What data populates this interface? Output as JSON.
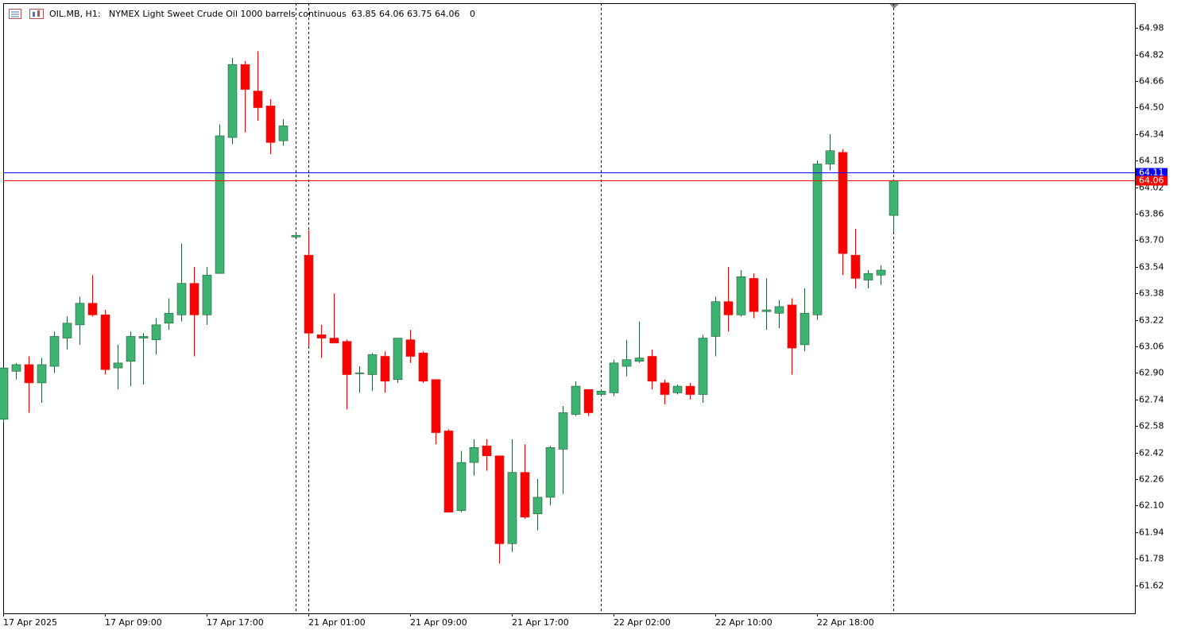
{
  "chart_data": {
    "type": "candlestick",
    "header": {
      "symbol": "OIL.MB, H1:",
      "description": "NYMEX Light Sweet Crude Oil 1000 barrels continuous",
      "ohlc": "63.85 64.06 63.75 64.06",
      "volume": "0"
    },
    "categories": [
      "17 Apr 2025",
      null,
      null,
      null,
      null,
      null,
      null,
      null,
      "17 Apr 09:00",
      null,
      null,
      null,
      null,
      null,
      null,
      null,
      "17 Apr 17:00",
      null,
      null,
      null,
      null,
      null,
      null,
      null,
      "21 Apr 01:00",
      null,
      null,
      null,
      null,
      null,
      null,
      null,
      "21 Apr 09:00",
      null,
      null,
      null,
      null,
      null,
      null,
      null,
      "21 Apr 17:00",
      null,
      null,
      null,
      null,
      null,
      null,
      null,
      "22 Apr 02:00",
      null,
      null,
      null,
      null,
      null,
      null,
      null,
      "22 Apr 10:00",
      null,
      null,
      null,
      null,
      null,
      null,
      null,
      "22 Apr 18:00",
      null,
      null,
      null,
      null,
      null,
      null
    ],
    "open": [
      62.62,
      62.91,
      62.95,
      62.84,
      62.94,
      63.11,
      63.19,
      63.32,
      63.25,
      62.93,
      62.97,
      63.11,
      63.1,
      63.2,
      63.25,
      63.44,
      63.25,
      63.5,
      64.32,
      64.76,
      64.6,
      64.51,
      64.3,
      63.72,
      63.61,
      63.13,
      63.11,
      63.09,
      62.9,
      62.89,
      63.0,
      62.86,
      63.1,
      63.02,
      62.86,
      62.55,
      62.07,
      62.36,
      62.46,
      62.4,
      61.87,
      62.3,
      62.05,
      62.15,
      62.44,
      62.65,
      62.8,
      62.77,
      62.78,
      62.94,
      62.97,
      63.0,
      62.84,
      62.78,
      62.82,
      62.77,
      63.12,
      63.33,
      63.25,
      63.47,
      63.27,
      63.26,
      63.31,
      63.07,
      63.25,
      64.16,
      64.23,
      63.61,
      63.46,
      63.49,
      63.85
    ],
    "high": [
      62.93,
      62.96,
      63.0,
      62.99,
      63.15,
      63.24,
      63.36,
      63.49,
      63.28,
      63.07,
      63.15,
      63.14,
      63.23,
      63.35,
      63.68,
      63.54,
      63.54,
      64.4,
      64.8,
      64.78,
      64.84,
      64.55,
      64.43,
      63.74,
      63.76,
      63.19,
      63.38,
      63.1,
      62.94,
      63.02,
      63.03,
      63.11,
      63.16,
      63.03,
      62.86,
      62.56,
      62.43,
      62.5,
      62.5,
      62.4,
      62.5,
      62.47,
      62.26,
      62.46,
      62.7,
      62.85,
      62.8,
      62.8,
      62.98,
      63.1,
      63.21,
      63.04,
      62.86,
      62.83,
      62.84,
      63.13,
      63.36,
      63.54,
      63.52,
      63.5,
      63.47,
      63.34,
      63.35,
      63.41,
      64.18,
      64.34,
      64.25,
      63.77,
      63.52,
      63.55,
      64.06
    ],
    "low": [
      62.6,
      62.86,
      62.66,
      62.72,
      62.9,
      63.04,
      63.07,
      63.24,
      62.89,
      62.8,
      62.82,
      62.83,
      63.01,
      63.16,
      63.21,
      63.0,
      63.19,
      63.5,
      64.28,
      64.35,
      64.42,
      64.22,
      64.27,
      63.72,
      63.06,
      62.99,
      63.08,
      62.68,
      62.78,
      62.79,
      62.78,
      62.84,
      62.96,
      62.84,
      62.47,
      62.06,
      62.06,
      62.28,
      62.31,
      61.75,
      61.82,
      62.02,
      61.95,
      62.1,
      62.17,
      62.64,
      62.64,
      62.76,
      62.76,
      62.88,
      62.96,
      62.8,
      62.71,
      62.77,
      62.74,
      62.72,
      63.0,
      63.15,
      63.24,
      63.23,
      63.16,
      63.17,
      62.89,
      63.03,
      63.22,
      64.12,
      63.49,
      63.41,
      63.41,
      63.43,
      63.75
    ],
    "close": [
      62.93,
      62.95,
      62.84,
      62.95,
      63.12,
      63.2,
      63.32,
      63.25,
      62.92,
      62.96,
      63.12,
      63.12,
      63.19,
      63.26,
      63.44,
      63.25,
      63.49,
      64.33,
      64.76,
      64.61,
      64.5,
      64.29,
      64.39,
      63.73,
      63.14,
      63.11,
      63.08,
      62.89,
      62.9,
      63.01,
      62.85,
      63.11,
      63.0,
      62.85,
      62.54,
      62.06,
      62.36,
      62.45,
      62.4,
      61.87,
      62.3,
      62.03,
      62.15,
      62.45,
      62.66,
      62.82,
      62.66,
      62.79,
      62.96,
      62.98,
      62.99,
      62.85,
      62.77,
      62.82,
      62.77,
      63.11,
      63.33,
      63.25,
      63.48,
      63.27,
      63.28,
      63.3,
      63.05,
      63.26,
      64.16,
      64.24,
      63.62,
      63.47,
      63.5,
      63.52,
      64.06
    ],
    "up_color": "#3cb371",
    "down_color": "#ff0000",
    "ylim": [
      61.45,
      65.13
    ],
    "yticks": [
      64.98,
      64.82,
      64.66,
      {
        "value": 64.5,
        "label": "64.50"
      },
      64.34,
      64.18,
      64.02,
      63.86,
      {
        "value": 63.7,
        "label": "63.70"
      },
      63.54,
      63.38,
      63.22,
      63.06,
      {
        "value": 62.9,
        "label": "62.90"
      },
      62.74,
      62.58,
      62.42,
      62.26,
      {
        "value": 62.1,
        "label": "62.10"
      },
      61.94,
      61.78,
      61.62
    ],
    "price_lines": [
      {
        "value": 64.11,
        "color": "#0000ff"
      },
      {
        "value": 64.06,
        "color": "#ff0000"
      }
    ]
  }
}
